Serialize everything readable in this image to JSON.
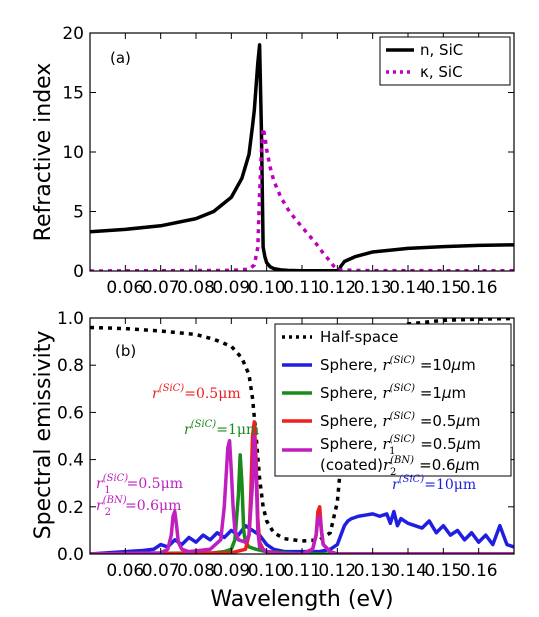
{
  "chart_data": [
    {
      "type": "line",
      "panel_label": "(a)",
      "ylabel": "Refractive index",
      "xlabel": "",
      "xlim": [
        0.05,
        0.17
      ],
      "ylim": [
        0,
        20
      ],
      "xticks": [
        "0.06",
        "0.07",
        "0.08",
        "0.09",
        "0.10",
        "0.11",
        "0.12",
        "0.13",
        "0.14",
        "0.15",
        "0.16"
      ],
      "xtick_values": [
        0.06,
        0.07,
        0.08,
        0.09,
        0.1,
        0.11,
        0.12,
        0.13,
        0.14,
        0.15,
        0.16
      ],
      "yticks": [
        "0",
        "5",
        "10",
        "15",
        "20"
      ],
      "ytick_values": [
        0,
        5,
        10,
        15,
        20
      ],
      "legend_position": "top-right",
      "series": [
        {
          "name": "n, SiC",
          "color": "#000000",
          "dash": "solid",
          "x": [
            0.05,
            0.06,
            0.07,
            0.08,
            0.085,
            0.09,
            0.093,
            0.095,
            0.096,
            0.0965,
            0.097,
            0.0975,
            0.098,
            0.0985,
            0.099,
            0.0995,
            0.1,
            0.101,
            0.102,
            0.104,
            0.106,
            0.11,
            0.115,
            0.12,
            0.1205,
            0.121,
            0.122,
            0.125,
            0.13,
            0.14,
            0.15,
            0.16,
            0.17
          ],
          "y": [
            3.3,
            3.5,
            3.8,
            4.4,
            5.0,
            6.2,
            7.8,
            9.8,
            12.2,
            13.5,
            15.5,
            17.5,
            19.0,
            12.0,
            2.0,
            1.2,
            0.7,
            0.35,
            0.2,
            0.1,
            0.05,
            0.02,
            0.02,
            0.02,
            0.05,
            0.4,
            0.8,
            1.2,
            1.6,
            1.9,
            2.05,
            2.15,
            2.2
          ]
        },
        {
          "name": "κ, SiC",
          "color": "#bf00bf",
          "dash": "dotted",
          "x": [
            0.05,
            0.09,
            0.095,
            0.0965,
            0.0975,
            0.098,
            0.0985,
            0.099,
            0.0995,
            0.1,
            0.101,
            0.102,
            0.104,
            0.106,
            0.108,
            0.11,
            0.112,
            0.114,
            0.116,
            0.118,
            0.119,
            0.12,
            0.125,
            0.13,
            0.17
          ],
          "y": [
            0.0,
            0.05,
            0.15,
            0.5,
            2.0,
            6.5,
            10.0,
            12.0,
            11.3,
            10.2,
            8.7,
            7.6,
            6.2,
            5.2,
            4.4,
            3.7,
            3.0,
            2.3,
            1.5,
            0.8,
            0.4,
            0.1,
            0.05,
            0.03,
            0.02
          ]
        }
      ]
    },
    {
      "type": "line",
      "panel_label": "(b)",
      "ylabel": "Spectral emissivity",
      "xlabel": "Wavelength (eV)",
      "xlim": [
        0.05,
        0.17
      ],
      "ylim": [
        0,
        1.0
      ],
      "xticks": [
        "0.06",
        "0.07",
        "0.08",
        "0.09",
        "0.10",
        "0.11",
        "0.12",
        "0.13",
        "0.14",
        "0.15",
        "0.16"
      ],
      "xtick_values": [
        0.06,
        0.07,
        0.08,
        0.09,
        0.1,
        0.11,
        0.12,
        0.13,
        0.14,
        0.15,
        0.16
      ],
      "yticks": [
        "0.0",
        "0.2",
        "0.4",
        "0.6",
        "0.8",
        "1.0"
      ],
      "ytick_values": [
        0.0,
        0.2,
        0.4,
        0.6,
        0.8,
        1.0
      ],
      "legend_position": "top-right",
      "series": [
        {
          "name": "Half-space",
          "color": "#000000",
          "dash": "dotted",
          "x": [
            0.05,
            0.06,
            0.07,
            0.08,
            0.085,
            0.09,
            0.093,
            0.095,
            0.096,
            0.097,
            0.098,
            0.099,
            0.1,
            0.102,
            0.105,
            0.11,
            0.115,
            0.118,
            0.12,
            0.122,
            0.125,
            0.13,
            0.14,
            0.15,
            0.16,
            0.17
          ],
          "y": [
            0.96,
            0.955,
            0.945,
            0.93,
            0.91,
            0.88,
            0.83,
            0.76,
            0.66,
            0.5,
            0.32,
            0.2,
            0.14,
            0.09,
            0.065,
            0.055,
            0.06,
            0.09,
            0.22,
            0.55,
            0.8,
            0.92,
            0.975,
            0.99,
            0.995,
            0.998
          ]
        },
        {
          "name": "Sphere, r^(SiC) =10μm",
          "color": "#1f1fdf",
          "dash": "solid",
          "x": [
            0.05,
            0.06,
            0.065,
            0.068,
            0.07,
            0.072,
            0.074,
            0.076,
            0.078,
            0.08,
            0.082,
            0.084,
            0.086,
            0.088,
            0.09,
            0.092,
            0.094,
            0.096,
            0.098,
            0.1,
            0.102,
            0.105,
            0.11,
            0.115,
            0.118,
            0.12,
            0.121,
            0.122,
            0.123,
            0.124,
            0.126,
            0.128,
            0.13,
            0.132,
            0.134,
            0.135,
            0.136,
            0.137,
            0.138,
            0.14,
            0.142,
            0.144,
            0.146,
            0.148,
            0.15,
            0.152,
            0.154,
            0.156,
            0.158,
            0.16,
            0.162,
            0.164,
            0.166,
            0.168,
            0.17
          ],
          "y": [
            0.0,
            0.01,
            0.015,
            0.02,
            0.04,
            0.03,
            0.06,
            0.04,
            0.07,
            0.05,
            0.08,
            0.06,
            0.09,
            0.07,
            0.1,
            0.08,
            0.12,
            0.1,
            0.08,
            0.04,
            0.02,
            0.01,
            0.01,
            0.01,
            0.02,
            0.04,
            0.08,
            0.12,
            0.14,
            0.15,
            0.16,
            0.165,
            0.17,
            0.16,
            0.17,
            0.13,
            0.18,
            0.12,
            0.15,
            0.13,
            0.12,
            0.11,
            0.14,
            0.09,
            0.12,
            0.08,
            0.1,
            0.06,
            0.09,
            0.05,
            0.08,
            0.04,
            0.12,
            0.04,
            0.03
          ]
        },
        {
          "name": "Sphere, r^(SiC) =1μm",
          "color": "#1a8a1a",
          "dash": "solid",
          "x": [
            0.05,
            0.085,
            0.088,
            0.09,
            0.091,
            0.092,
            0.0925,
            0.093,
            0.0935,
            0.094,
            0.095,
            0.097,
            0.1,
            0.105,
            0.11,
            0.17
          ],
          "y": [
            0.0,
            0.005,
            0.01,
            0.02,
            0.06,
            0.25,
            0.42,
            0.3,
            0.1,
            0.05,
            0.03,
            0.02,
            0.01,
            0.005,
            0.0,
            0.0
          ]
        },
        {
          "name": "Sphere, r^(SiC) =0.5μm",
          "color": "#ef1f1f",
          "dash": "solid",
          "x": [
            0.05,
            0.09,
            0.094,
            0.095,
            0.0955,
            0.096,
            0.0965,
            0.097,
            0.0975,
            0.098,
            0.099,
            0.1,
            0.105,
            0.11,
            0.113,
            0.114,
            0.1145,
            0.115,
            0.1155,
            0.116,
            0.118,
            0.12,
            0.17
          ],
          "y": [
            0.0,
            0.005,
            0.02,
            0.08,
            0.25,
            0.5,
            0.56,
            0.4,
            0.15,
            0.05,
            0.02,
            0.01,
            0.0,
            0.0,
            0.02,
            0.08,
            0.18,
            0.2,
            0.1,
            0.04,
            0.01,
            0.0,
            0.0
          ]
        },
        {
          "name": "Sphere, r1^(SiC) =0.5μm (coated) r2^(BN) =0.6μm",
          "color": "#bf1fbf",
          "dash": "solid",
          "x": [
            0.05,
            0.07,
            0.072,
            0.073,
            0.0735,
            0.074,
            0.0745,
            0.075,
            0.076,
            0.078,
            0.084,
            0.087,
            0.088,
            0.089,
            0.0895,
            0.09,
            0.0905,
            0.091,
            0.092,
            0.094,
            0.095,
            0.096,
            0.0965,
            0.097,
            0.0975,
            0.098,
            0.1,
            0.105,
            0.11,
            0.113,
            0.114,
            0.1145,
            0.115,
            0.1155,
            0.116,
            0.118,
            0.12,
            0.17
          ],
          "y": [
            0.0,
            0.005,
            0.02,
            0.08,
            0.16,
            0.18,
            0.12,
            0.05,
            0.02,
            0.01,
            0.02,
            0.06,
            0.2,
            0.45,
            0.48,
            0.35,
            0.2,
            0.1,
            0.06,
            0.05,
            0.08,
            0.3,
            0.5,
            0.35,
            0.1,
            0.03,
            0.01,
            0.0,
            0.0,
            0.02,
            0.08,
            0.15,
            0.16,
            0.1,
            0.04,
            0.01,
            0.0,
            0.0
          ]
        }
      ]
    }
  ],
  "annotations_b": [
    {
      "color": "#ef1f1f",
      "base": "r",
      "sup": "(SiC)",
      "sub": "",
      "value": "=0.5μm"
    },
    {
      "color": "#1a8a1a",
      "base": "r",
      "sup": "(SiC)",
      "sub": "",
      "value": "=1μm"
    },
    {
      "color": "#bf1fbf",
      "base": "r",
      "sup": "(SiC)",
      "sub": "1",
      "value": "=0.5μm"
    },
    {
      "color": "#bf1fbf",
      "base": "r",
      "sup": "(BN)",
      "sub": "2",
      "value": "=0.6μm"
    },
    {
      "color": "#1f1fdf",
      "base": "r",
      "sup": "(SiC)",
      "sub": "",
      "value": "=10μm"
    }
  ],
  "legend_b_coated_prefix": "(coated)"
}
